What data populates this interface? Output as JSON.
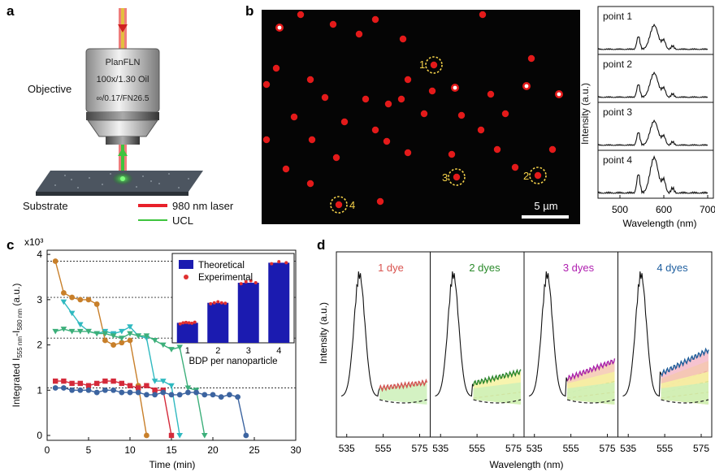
{
  "panel_letters": {
    "a": "a",
    "b": "b",
    "c": "c",
    "d": "d"
  },
  "panel_a": {
    "objective_label": "Objective",
    "lens_lines": [
      "PlanFLN",
      "100x/1.30 Oil",
      "∞/0.17/FN26.5"
    ],
    "substrate_label": "Substrate",
    "legend": [
      {
        "label": "980 nm laser",
        "color": "#e8202a"
      },
      {
        "label": "UCL",
        "color": "#3ec43e"
      }
    ]
  },
  "panel_b": {
    "point_markers": [
      "1",
      "2",
      "3",
      "4"
    ],
    "scale_bar_label": "5 µm",
    "spectra": {
      "point_labels": [
        "point 1",
        "point 2",
        "point 3",
        "point 4"
      ],
      "x_ticks": [
        "500",
        "600",
        "700"
      ],
      "xlabel": "Wavelength (nm)",
      "ylabel": "Intensity (a.u.)"
    }
  },
  "panel_c": {
    "ylabel_parts": [
      "Integrated I",
      "555 nm",
      "-I",
      "580 nm",
      " (a.u.)"
    ],
    "y_multiplier": "x10³",
    "y_ticks": [
      "0",
      "1",
      "2",
      "3",
      "4"
    ],
    "x_ticks": [
      "0",
      "5",
      "10",
      "15",
      "20",
      "25",
      "30"
    ],
    "xlabel": "Time (min)",
    "inset": {
      "legend": [
        "Theoretical",
        "Experimental"
      ],
      "x_ticks": [
        "1",
        "2",
        "3",
        "4"
      ],
      "xlabel": "BDP per nanoparticle",
      "bar_color": "#1b1bb0",
      "dot_color": "#e03030"
    }
  },
  "panel_d": {
    "titles": [
      {
        "text": "1 dye",
        "color": "#d9534f"
      },
      {
        "text": "2 dyes",
        "color": "#2a8a2a"
      },
      {
        "text": "3 dyes",
        "color": "#b020b0"
      },
      {
        "text": "4 dyes",
        "color": "#2060a0"
      }
    ],
    "x_ticks": [
      "535",
      "555",
      "575"
    ],
    "xlabel": "Wavelength (nm)",
    "ylabel": "Intensity (a.u.)"
  },
  "chart_data": [
    {
      "type": "line",
      "title": "",
      "xlabel": "Time (min)",
      "ylabel": "Integrated I555 nm - I580 nm (a.u.) x10³",
      "xlim": [
        0,
        30
      ],
      "ylim": [
        0,
        4
      ],
      "series": [
        {
          "color": "#c87f2a",
          "x": [
            1,
            2,
            3,
            4,
            5,
            6,
            7,
            8,
            9,
            10,
            11,
            12
          ],
          "y": [
            3.85,
            3.15,
            3.05,
            3.0,
            3.0,
            2.9,
            2.1,
            2.0,
            2.05,
            2.1,
            1.1,
            0.0
          ]
        },
        {
          "color": "#2fb9c0",
          "x": [
            2,
            3,
            4,
            5,
            6,
            7,
            8,
            9,
            10,
            11,
            12,
            13,
            14,
            15,
            16
          ],
          "y": [
            2.95,
            2.7,
            2.45,
            2.3,
            2.25,
            2.3,
            2.25,
            2.3,
            2.4,
            2.2,
            2.15,
            1.2,
            1.2,
            1.1,
            0.0
          ]
        },
        {
          "color": "#3caf7a",
          "x": [
            1,
            2,
            3,
            4,
            5,
            6,
            7,
            8,
            9,
            10,
            11,
            12,
            13,
            14,
            15,
            16,
            17,
            18,
            19
          ],
          "y": [
            2.3,
            2.35,
            2.3,
            2.3,
            2.3,
            2.25,
            2.25,
            2.2,
            2.15,
            2.25,
            2.2,
            2.2,
            2.1,
            2.0,
            1.9,
            1.95,
            1.05,
            1.0,
            0.0
          ]
        },
        {
          "color": "#d42a3a",
          "x": [
            1,
            2,
            3,
            4,
            5,
            6,
            7,
            8,
            9,
            10,
            11,
            12,
            13,
            14,
            15
          ],
          "y": [
            1.2,
            1.2,
            1.15,
            1.15,
            1.1,
            1.15,
            1.2,
            1.2,
            1.15,
            1.1,
            1.05,
            1.1,
            1.0,
            1.0,
            0.0
          ]
        },
        {
          "color": "#3c64a0",
          "x": [
            1,
            2,
            3,
            4,
            5,
            6,
            7,
            8,
            9,
            10,
            11,
            12,
            13,
            14,
            15,
            16,
            17,
            18,
            19,
            20,
            21,
            22,
            23,
            24
          ],
          "y": [
            1.05,
            1.05,
            1.0,
            1.0,
            1.0,
            0.95,
            1.0,
            1.0,
            0.95,
            0.95,
            0.95,
            0.9,
            0.9,
            0.95,
            0.9,
            0.9,
            0.95,
            0.95,
            0.9,
            0.9,
            0.85,
            0.9,
            0.85,
            0.0
          ]
        }
      ],
      "reference_lines": [
        1.05,
        2.15,
        3.05,
        3.85
      ]
    },
    {
      "type": "bar",
      "title": "",
      "xlabel": "BDP per nanoparticle",
      "ylabel": "",
      "categories": [
        "1",
        "2",
        "3",
        "4"
      ],
      "series": [
        {
          "name": "Theoretical",
          "values": [
            1.0,
            2.0,
            3.0,
            4.0
          ]
        }
      ],
      "experimental_points": [
        [
          0.95,
          1.0,
          1.02,
          1.0,
          0.98,
          1.03
        ],
        [
          1.95,
          2.0,
          2.05,
          2.0,
          1.98
        ],
        [
          2.95,
          3.05,
          3.1,
          3.0
        ],
        [
          3.95,
          4.05,
          4.0
        ]
      ],
      "ylim": [
        0,
        4.3
      ]
    }
  ]
}
